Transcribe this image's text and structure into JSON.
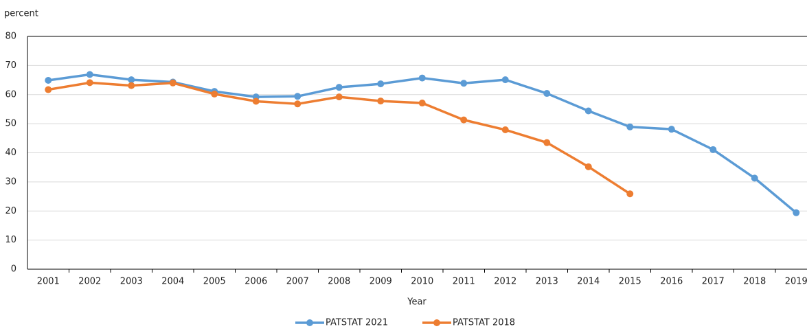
{
  "chart_data": {
    "type": "line",
    "y_label": "percent",
    "x_label": "Year",
    "categories": [
      "2001",
      "2002",
      "2003",
      "2004",
      "2005",
      "2006",
      "2007",
      "2008",
      "2009",
      "2010",
      "2011",
      "2012",
      "2013",
      "2014",
      "2015",
      "2016",
      "2017",
      "2018",
      "2019"
    ],
    "series": [
      {
        "name": "PATSTAT 2021",
        "color": "#5b9bd5",
        "values": [
          64.9,
          66.9,
          65.1,
          64.3,
          61.1,
          59.2,
          59.4,
          62.5,
          63.7,
          65.7,
          63.9,
          65.1,
          60.4,
          54.4,
          48.9,
          48.1,
          41.1,
          31.3,
          19.4
        ]
      },
      {
        "name": "PATSTAT 2018",
        "color": "#ed7d31",
        "values": [
          61.7,
          64.1,
          63.1,
          64.0,
          60.2,
          57.7,
          56.8,
          59.2,
          57.8,
          57.1,
          51.3,
          47.9,
          43.5,
          35.2,
          25.9,
          null,
          null,
          null,
          null
        ]
      }
    ],
    "ylim": [
      0,
      80
    ],
    "yticks": [
      0,
      10,
      20,
      30,
      40,
      50,
      60,
      70,
      80
    ],
    "grid": true
  }
}
